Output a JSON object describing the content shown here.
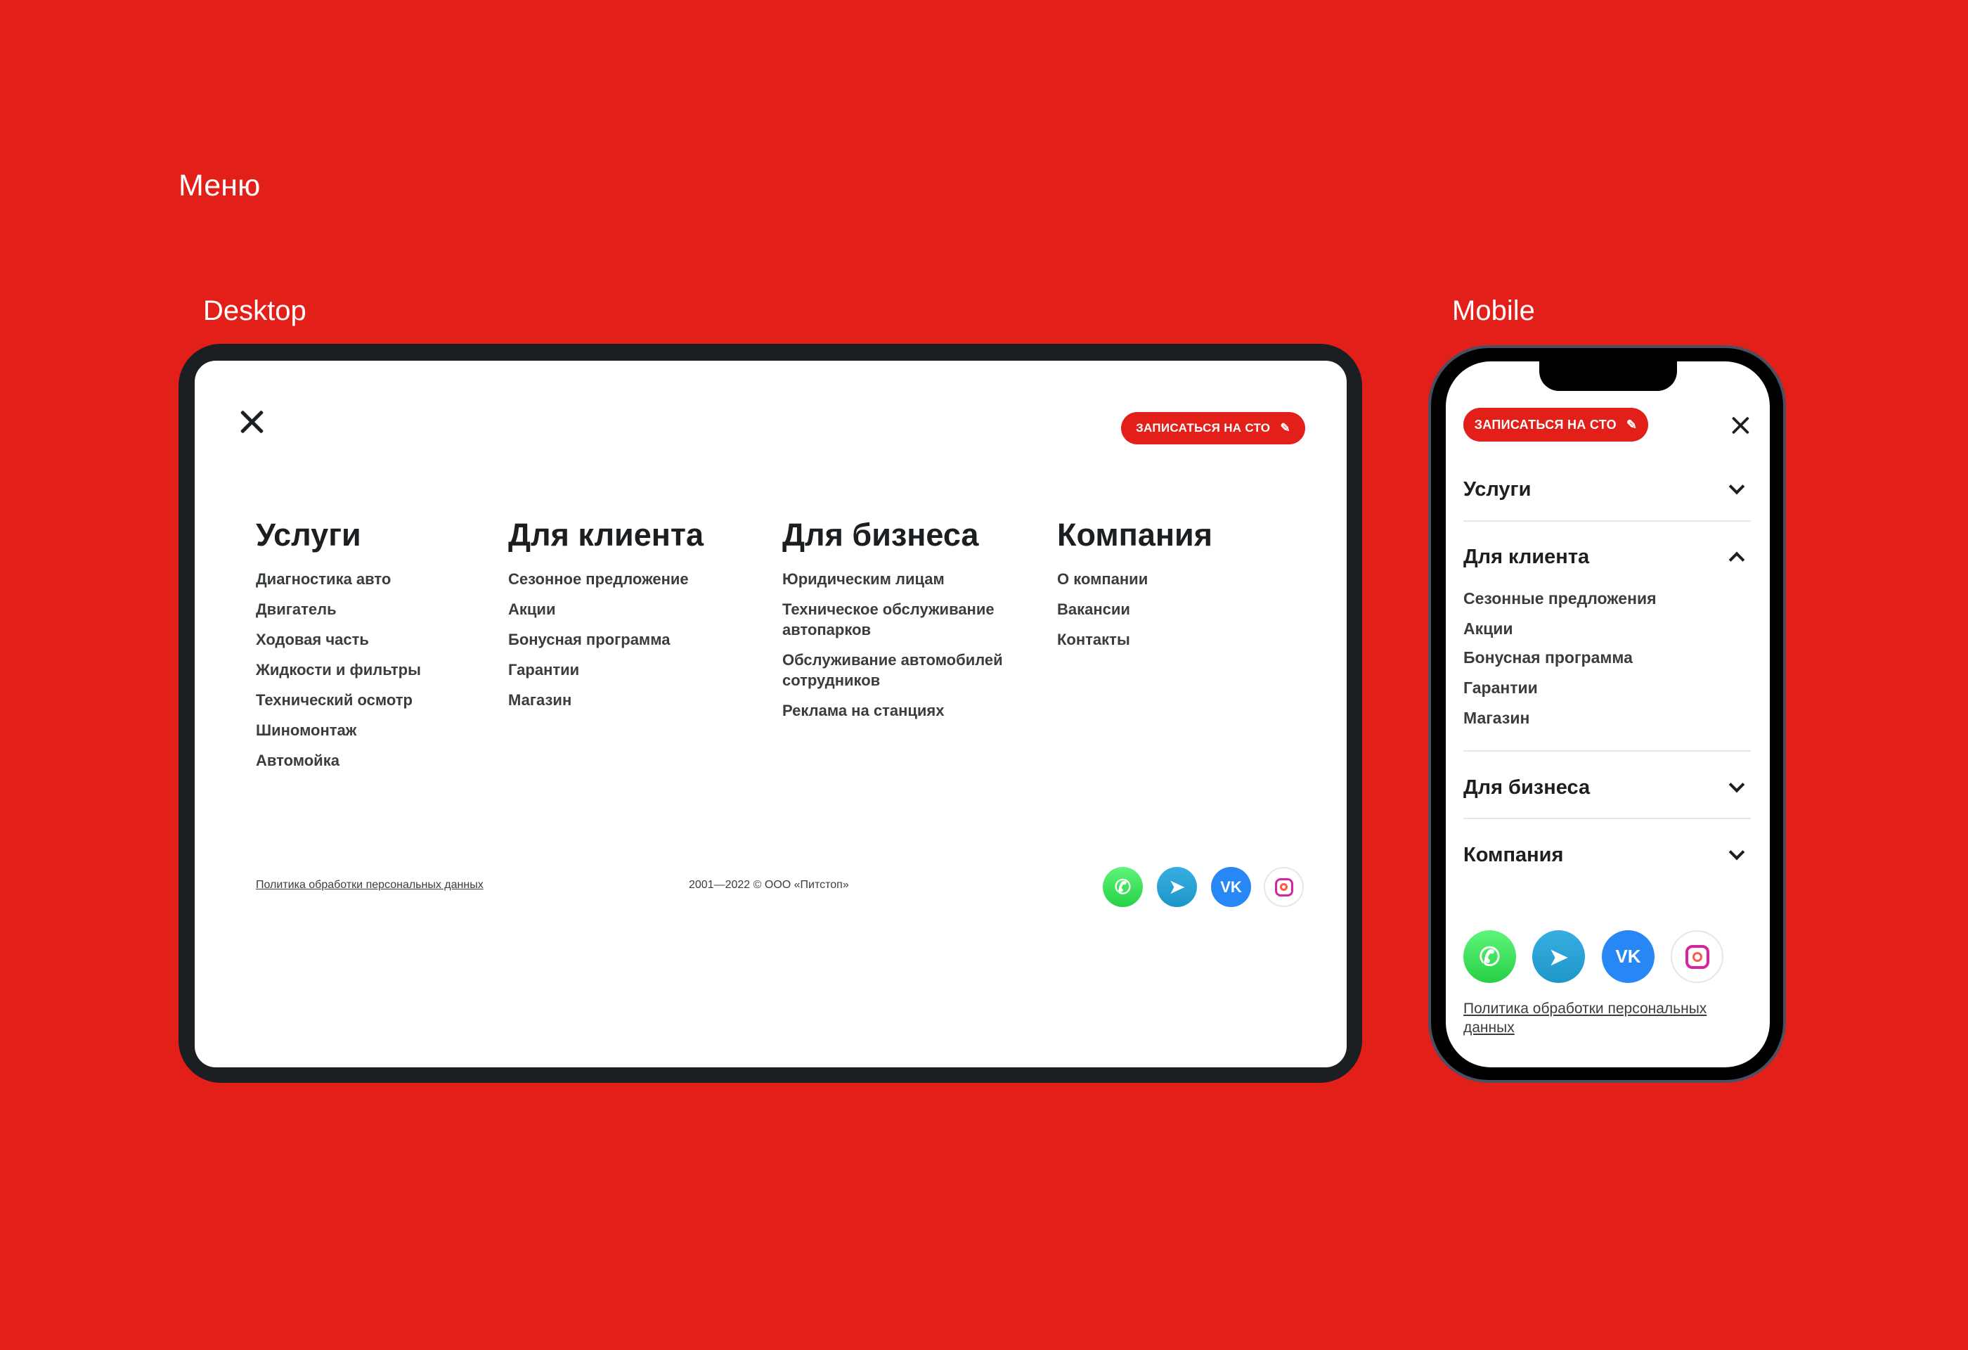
{
  "page_title": "Меню",
  "desktop_label": "Desktop",
  "mobile_label": "Mobile",
  "cta_label": "ЗАПИСАТЬСЯ НА СТО",
  "columns": [
    {
      "title": "Услуги",
      "items": [
        "Диагностика авто",
        "Двигатель",
        "Ходовая часть",
        "Жидкости и фильтры",
        "Технический осмотр",
        "Шиномонтаж",
        "Автомойка"
      ]
    },
    {
      "title": "Для клиента",
      "items": [
        "Сезонное предложение",
        "Акции",
        "Бонусная программа",
        "Гарантии",
        "Магазин"
      ]
    },
    {
      "title": "Для бизнеса",
      "items": [
        "Юридическим лицам",
        "Техническое обслуживание автопарков",
        "Обслуживание автомобилей сотрудников",
        "Реклама на станциях"
      ]
    },
    {
      "title": "Компания",
      "items": [
        "О компании",
        "Вакансии",
        "Контакты"
      ]
    }
  ],
  "footer": {
    "policy": "Политика обработки персональных данных",
    "copyright": "2001—2022 © ООО «Питстоп»"
  },
  "social": [
    "whatsapp-icon",
    "telegram-icon",
    "vk-icon",
    "instagram-icon"
  ],
  "mobile": {
    "sections": [
      {
        "title": "Услуги",
        "expanded": false
      },
      {
        "title": "Для клиента",
        "expanded": true
      },
      {
        "title": "Для бизнеса",
        "expanded": false
      },
      {
        "title": "Компания",
        "expanded": false
      }
    ],
    "client_items": [
      "Сезонные предложения",
      "Акции",
      "Бонусная программа",
      "Гарантии",
      "Магазин"
    ],
    "policy": "Политика обработки персональных данных"
  },
  "colors": {
    "accent": "#e31f19",
    "dark": "#1c1f22"
  }
}
